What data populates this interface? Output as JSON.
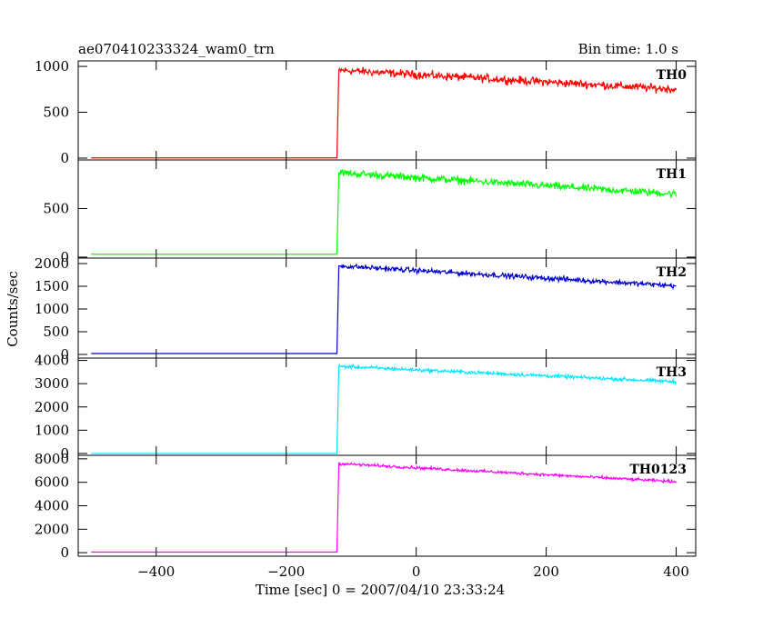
{
  "chart_data": {
    "type": "line",
    "title": "ae070410233324_wam0_trn",
    "bin_time": "Bin time: 1.0 s",
    "xlabel": "Time [sec] 0 = 2007/04/10 23:33:24",
    "ylabel": "Counts/sec",
    "xlim": [
      -520,
      430
    ],
    "x_ticks": [
      -400,
      -200,
      0,
      200,
      400
    ],
    "x_tick_labels": [
      "−400",
      "−200",
      "0",
      "200",
      "400"
    ],
    "x_start": -500,
    "x_end": 400,
    "onset_x": -121,
    "panels": [
      {
        "name": "TH0",
        "color": "#ff0000",
        "ylim": [
          -20,
          1060
        ],
        "y_ticks": [
          0,
          500,
          1000
        ],
        "y_tick_labels": [
          "0",
          "500",
          "1000"
        ],
        "pre_level": 2,
        "peak": 960,
        "end_level": 750,
        "noise": 40
      },
      {
        "name": "TH1",
        "color": "#00ff00",
        "ylim": [
          -10,
          1000
        ],
        "y_ticks": [
          0,
          500
        ],
        "y_tick_labels": [
          "0",
          "500"
        ],
        "pre_level": 30,
        "peak": 870,
        "end_level": 650,
        "noise": 35
      },
      {
        "name": "TH2",
        "color": "#0000cc",
        "ylim": [
          -80,
          2120
        ],
        "y_ticks": [
          0,
          500,
          1000,
          1500,
          2000
        ],
        "y_tick_labels": [
          "0",
          "500",
          "1000",
          "1500",
          "2000"
        ],
        "pre_level": 20,
        "peak": 1950,
        "end_level": 1510,
        "noise": 50
      },
      {
        "name": "TH3",
        "color": "#00e5ff",
        "ylim": [
          -80,
          4100
        ],
        "y_ticks": [
          0,
          1000,
          2000,
          3000,
          4000
        ],
        "y_tick_labels": [
          "0",
          "1000",
          "2000",
          "3000",
          "4000"
        ],
        "pre_level": 0,
        "peak": 3750,
        "end_level": 3080,
        "noise": 70
      },
      {
        "name": "TH0123",
        "color": "#ff00ff",
        "ylim": [
          -300,
          8300
        ],
        "y_ticks": [
          0,
          2000,
          4000,
          6000,
          8000
        ],
        "y_tick_labels": [
          "0",
          "2000",
          "4000",
          "6000",
          "8000"
        ],
        "pre_level": 50,
        "peak": 7600,
        "end_level": 6050,
        "noise": 110
      }
    ]
  }
}
